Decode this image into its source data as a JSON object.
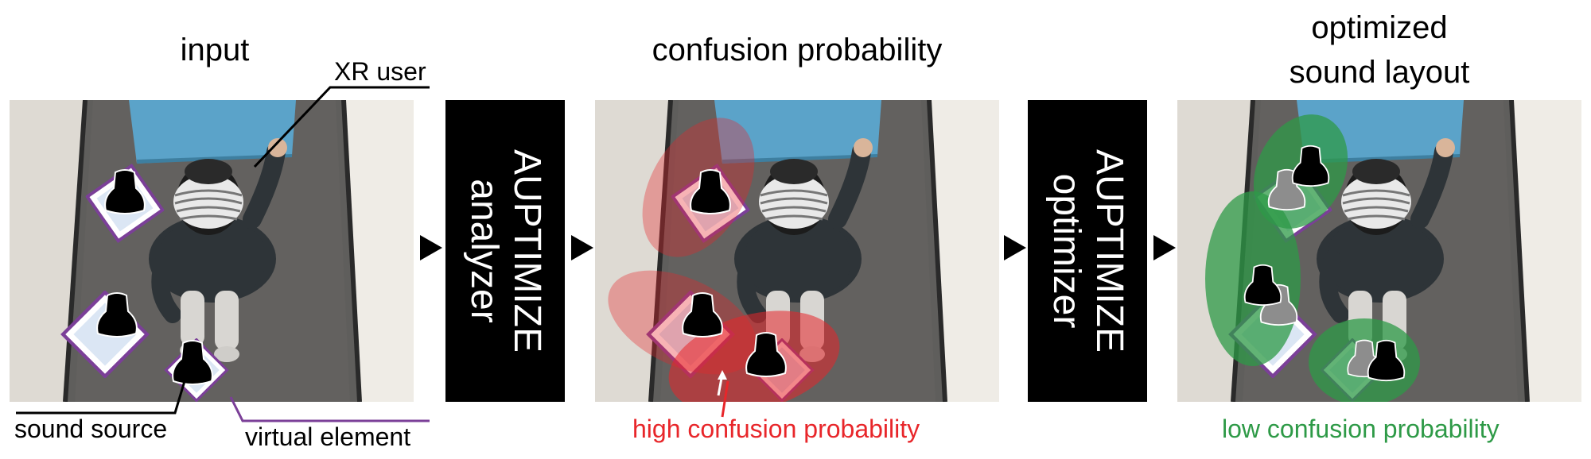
{
  "panels": {
    "input": {
      "title": "input"
    },
    "confusion": {
      "title": "confusion probability"
    },
    "optimized": {
      "title_line1": "optimized",
      "title_line2": "sound layout"
    }
  },
  "callouts": {
    "xr_user": "XR user",
    "sound_source": "sound source",
    "virtual_element": "virtual element",
    "high_confusion": "high confusion probability",
    "low_confusion": "low confusion probability"
  },
  "boxes": {
    "analyzer_line1": "AUPTIMIZE",
    "analyzer_line2": "analyzer",
    "optimizer_line1": "AUPTIMIZE",
    "optimizer_line2": "optimizer"
  },
  "colors": {
    "high": "#e8262a",
    "low": "#2e9a47",
    "virtual_element_border": "#7b3f98",
    "carpet": "#5f5e5c",
    "screen_blue": "#5ba3c9"
  }
}
